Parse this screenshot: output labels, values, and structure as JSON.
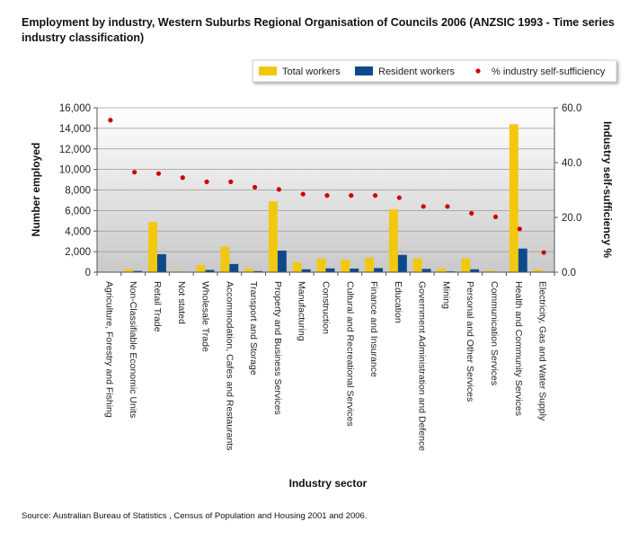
{
  "title": "Employment by industry, Western Suburbs Regional Organisation of Councils 2006 (ANZSIC 1993 - Time series industry classification)",
  "source": "Source:  Australian Bureau of Statistics , Census of Population and Housing 2001 and 2006.",
  "colors": {
    "total": "#f2c80f",
    "resident": "#0d4a8c",
    "pct": "#cc0000"
  },
  "chart_data": {
    "type": "bar",
    "xlabel": "Industry sector",
    "ylabel": "Number employed",
    "y2label": "Industry self-sufficiency %",
    "ylim": [
      0,
      16000
    ],
    "y2lim": [
      0,
      60
    ],
    "yticks": [
      "0",
      "2,000",
      "4,000",
      "6,000",
      "8,000",
      "10,000",
      "12,000",
      "14,000",
      "16,000"
    ],
    "y2ticks": [
      "0.0",
      "20.0",
      "40.0",
      "60.0"
    ],
    "legend_position": "top-right",
    "grid": true,
    "categories": [
      "Agriculture, Forestry and Fishing",
      "Non-Classifiable Economic Units",
      "Retail Trade",
      "Not stated",
      "Wholesale Trade",
      "Accommodation, Cafes and Restaurants",
      "Transport and Storage",
      "Property and Business Services",
      "Manufacturing",
      "Construction",
      "Cultural and Recreational Services",
      "Finance and Insurance",
      "Education",
      "Government Administration and Defence",
      "Mining",
      "Personal and Other Services",
      "Communication Services",
      "Health and Community Services",
      "Electricity, Gas and Water Supply"
    ],
    "series": [
      {
        "name": "Total workers",
        "kind": "bar",
        "values": [
          60,
          300,
          4900,
          100,
          700,
          2500,
          350,
          6900,
          950,
          1300,
          1200,
          1400,
          6100,
          1350,
          350,
          1350,
          150,
          14400,
          250
        ]
      },
      {
        "name": "Resident workers",
        "kind": "bar",
        "values": [
          30,
          120,
          1750,
          30,
          220,
          800,
          100,
          2100,
          280,
          370,
          350,
          400,
          1680,
          320,
          80,
          280,
          40,
          2300,
          30
        ]
      },
      {
        "name": "% industry self-sufficiency",
        "kind": "point",
        "axis": "y2",
        "values": [
          55.5,
          36.5,
          36.0,
          34.5,
          33.0,
          33.0,
          31.0,
          30.2,
          28.5,
          28.0,
          28.0,
          28.0,
          27.2,
          24.0,
          24.0,
          21.5,
          20.2,
          15.8,
          7.2
        ]
      }
    ]
  }
}
